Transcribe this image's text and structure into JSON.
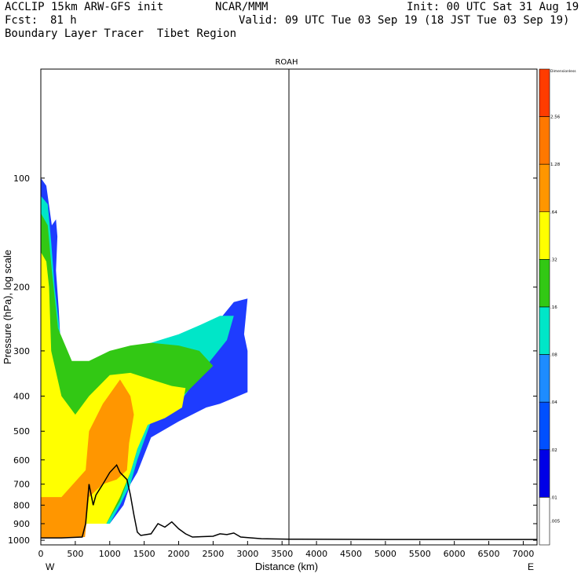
{
  "header": {
    "model": "ACCLIP 15km ARW-GFS init",
    "org": "NCAR/MMM",
    "init": "Init: 00 UTC Sat 31 Aug 19",
    "fcst_label": "Fcst:",
    "fcst_value": "81 h",
    "valid": "Valid: 09 UTC Tue 03 Sep 19 (18 JST Tue 03 Sep 19)",
    "product": "Boundary Layer Tracer  Tibet Region"
  },
  "chart_data": {
    "type": "heatmap",
    "title": "ROAH",
    "xlabel": "Distance (km)",
    "ylabel": "Pressure (hPa), log scale",
    "x_ticks": [
      0,
      500,
      1000,
      1500,
      2000,
      2500,
      3000,
      3500,
      4000,
      4500,
      5000,
      5500,
      6000,
      6500,
      7000
    ],
    "xlim": [
      0,
      7200
    ],
    "y_ticks": [
      100,
      200,
      300,
      400,
      500,
      600,
      700,
      800,
      900,
      1000
    ],
    "ylim": [
      1030,
      50
    ],
    "west_label": "W",
    "east_label": "E",
    "marker_line_km": 3600,
    "colorbar": {
      "levels": [
        "Dimensionless",
        "2.56",
        "1.28",
        ".64",
        ".32",
        ".16",
        ".08",
        ".04",
        ".02",
        ".01",
        ".005"
      ],
      "colors": [
        "#ff3c00",
        "#ff7800",
        "#ff9600",
        "#ffff00",
        "#32c814",
        "#00e6c8",
        "#1e8cff",
        "#0050ff",
        "#0000e6",
        "#ffffff"
      ]
    },
    "tracer_fields": [
      {
        "name": "blue",
        "color": "#1e3cff",
        "poly": [
          [
            0,
            100
          ],
          [
            80,
            105
          ],
          [
            160,
            135
          ],
          [
            220,
            130
          ],
          [
            240,
            145
          ],
          [
            220,
            180
          ],
          [
            260,
            230
          ],
          [
            300,
            320
          ],
          [
            450,
            370
          ],
          [
            700,
            360
          ],
          [
            1000,
            330
          ],
          [
            1300,
            330
          ],
          [
            1600,
            310
          ],
          [
            2000,
            280
          ],
          [
            2300,
            265
          ],
          [
            2600,
            245
          ],
          [
            2800,
            220
          ],
          [
            3000,
            215
          ],
          [
            2950,
            270
          ],
          [
            3000,
            300
          ],
          [
            3000,
            390
          ],
          [
            2600,
            420
          ],
          [
            2400,
            430
          ],
          [
            2000,
            470
          ],
          [
            1600,
            520
          ],
          [
            1400,
            650
          ],
          [
            1300,
            700
          ],
          [
            1200,
            800
          ],
          [
            1000,
            900
          ],
          [
            600,
            900
          ],
          [
            300,
            900
          ],
          [
            0,
            900
          ]
        ]
      },
      {
        "name": "cyan",
        "color": "#00e6c8",
        "poly": [
          [
            0,
            112
          ],
          [
            100,
            118
          ],
          [
            150,
            150
          ],
          [
            200,
            200
          ],
          [
            280,
            270
          ],
          [
            450,
            340
          ],
          [
            700,
            330
          ],
          [
            1000,
            310
          ],
          [
            1300,
            300
          ],
          [
            1600,
            285
          ],
          [
            2000,
            270
          ],
          [
            2300,
            255
          ],
          [
            2600,
            240
          ],
          [
            2800,
            240
          ],
          [
            2700,
            280
          ],
          [
            2400,
            330
          ],
          [
            2000,
            420
          ],
          [
            1600,
            470
          ],
          [
            1400,
            600
          ],
          [
            1300,
            700
          ],
          [
            1150,
            800
          ],
          [
            1000,
            900
          ],
          [
            0,
            900
          ]
        ]
      },
      {
        "name": "green",
        "color": "#32c814",
        "poly": [
          [
            0,
            125
          ],
          [
            100,
            135
          ],
          [
            160,
            180
          ],
          [
            250,
            260
          ],
          [
            450,
            320
          ],
          [
            700,
            320
          ],
          [
            1000,
            300
          ],
          [
            1300,
            290
          ],
          [
            1600,
            285
          ],
          [
            2000,
            290
          ],
          [
            2300,
            300
          ],
          [
            2500,
            330
          ],
          [
            2300,
            360
          ],
          [
            2000,
            410
          ],
          [
            1600,
            440
          ],
          [
            1450,
            520
          ],
          [
            1300,
            650
          ],
          [
            1150,
            780
          ],
          [
            950,
            900
          ],
          [
            0,
            900
          ]
        ]
      },
      {
        "name": "yellow",
        "color": "#ffff00",
        "poly": [
          [
            0,
            160
          ],
          [
            80,
            170
          ],
          [
            120,
            200
          ],
          [
            150,
            300
          ],
          [
            300,
            400
          ],
          [
            500,
            450
          ],
          [
            700,
            400
          ],
          [
            1000,
            350
          ],
          [
            1300,
            345
          ],
          [
            1600,
            360
          ],
          [
            1900,
            375
          ],
          [
            2100,
            380
          ],
          [
            2050,
            430
          ],
          [
            1800,
            460
          ],
          [
            1550,
            480
          ],
          [
            1400,
            560
          ],
          [
            1300,
            650
          ],
          [
            1150,
            760
          ],
          [
            950,
            900
          ],
          [
            0,
            900
          ]
        ]
      },
      {
        "name": "orange",
        "color": "#ff9600",
        "poly": [
          [
            0,
            760
          ],
          [
            300,
            760
          ],
          [
            650,
            640
          ],
          [
            700,
            500
          ],
          [
            900,
            420
          ],
          [
            1150,
            360
          ],
          [
            1300,
            400
          ],
          [
            1350,
            450
          ],
          [
            1280,
            540
          ],
          [
            1250,
            640
          ],
          [
            1100,
            680
          ],
          [
            900,
            700
          ],
          [
            700,
            760
          ],
          [
            640,
            980
          ],
          [
            0,
            985
          ]
        ]
      }
    ],
    "terrain_profile": [
      [
        0,
        985
      ],
      [
        300,
        985
      ],
      [
        600,
        980
      ],
      [
        650,
        900
      ],
      [
        700,
        700
      ],
      [
        760,
        800
      ],
      [
        800,
        750
      ],
      [
        900,
        700
      ],
      [
        1000,
        650
      ],
      [
        1100,
        620
      ],
      [
        1150,
        650
      ],
      [
        1250,
        680
      ],
      [
        1300,
        750
      ],
      [
        1350,
        850
      ],
      [
        1400,
        950
      ],
      [
        1450,
        970
      ],
      [
        1600,
        960
      ],
      [
        1700,
        900
      ],
      [
        1800,
        920
      ],
      [
        1900,
        890
      ],
      [
        2000,
        930
      ],
      [
        2100,
        960
      ],
      [
        2200,
        980
      ],
      [
        2500,
        975
      ],
      [
        2600,
        960
      ],
      [
        2700,
        965
      ],
      [
        2800,
        955
      ],
      [
        2900,
        980
      ],
      [
        3200,
        990
      ],
      [
        3600,
        993
      ],
      [
        5000,
        995
      ],
      [
        7200,
        995
      ]
    ]
  }
}
